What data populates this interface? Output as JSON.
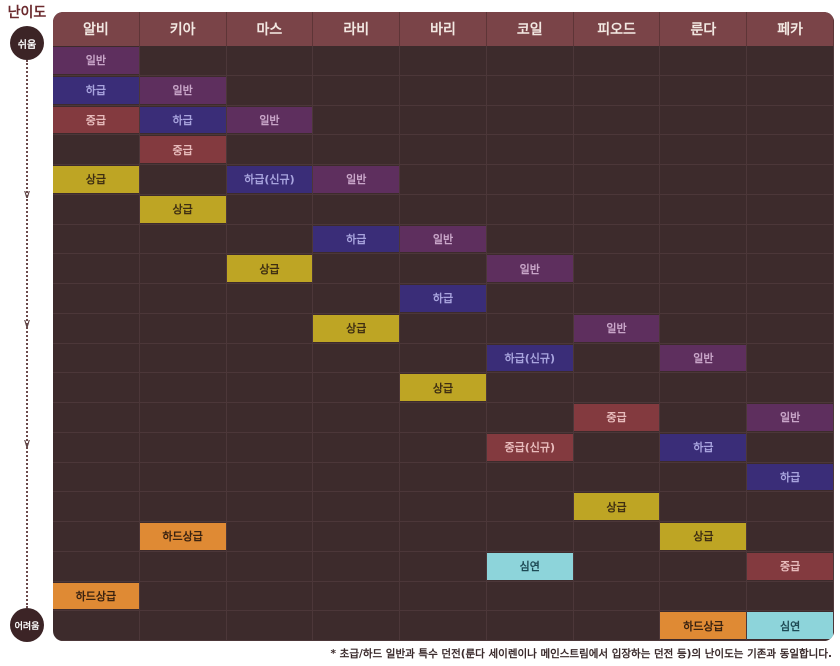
{
  "side": {
    "title": "난이도",
    "easy": "쉬움",
    "hard": "어려움"
  },
  "colors": {
    "일반": {
      "bg": "#5e2f5e",
      "fg": "#c9a6c9"
    },
    "하급": {
      "bg": "#3a2d78",
      "fg": "#a8a4de"
    },
    "하급(신규)": {
      "bg": "#3a2d78",
      "fg": "#a8a4de"
    },
    "중급": {
      "bg": "#833a3f",
      "fg": "#e8bcbc"
    },
    "중급(신규)": {
      "bg": "#833a3f",
      "fg": "#e8bcbc"
    },
    "상급": {
      "bg": "#bea524",
      "fg": "#3e2e12"
    },
    "하드상급": {
      "bg": "#df8a34",
      "fg": "#3a2210"
    },
    "심연": {
      "bg": "#8dd4da",
      "fg": "#1e4a55"
    }
  },
  "columns": [
    "알비",
    "키아",
    "마스",
    "라비",
    "바리",
    "코일",
    "피오드",
    "룬다",
    "페카"
  ],
  "blocks": [
    {
      "col": 0,
      "row": 0,
      "label": "일반"
    },
    {
      "col": 0,
      "row": 1,
      "label": "하급"
    },
    {
      "col": 0,
      "row": 2,
      "label": "중급"
    },
    {
      "col": 0,
      "row": 4,
      "label": "상급"
    },
    {
      "col": 0,
      "row": 18,
      "label": "하드상급"
    },
    {
      "col": 1,
      "row": 1,
      "label": "일반"
    },
    {
      "col": 1,
      "row": 2,
      "label": "하급"
    },
    {
      "col": 1,
      "row": 3,
      "label": "중급"
    },
    {
      "col": 1,
      "row": 5,
      "label": "상급"
    },
    {
      "col": 1,
      "row": 16,
      "label": "하드상급"
    },
    {
      "col": 2,
      "row": 2,
      "label": "일반"
    },
    {
      "col": 2,
      "row": 4,
      "label": "하급(신규)"
    },
    {
      "col": 2,
      "row": 7,
      "label": "상급"
    },
    {
      "col": 3,
      "row": 4,
      "label": "일반"
    },
    {
      "col": 3,
      "row": 6,
      "label": "하급"
    },
    {
      "col": 3,
      "row": 9,
      "label": "상급"
    },
    {
      "col": 4,
      "row": 6,
      "label": "일반"
    },
    {
      "col": 4,
      "row": 8,
      "label": "하급"
    },
    {
      "col": 4,
      "row": 11,
      "label": "상급"
    },
    {
      "col": 5,
      "row": 7,
      "label": "일반"
    },
    {
      "col": 5,
      "row": 10,
      "label": "하급(신규)"
    },
    {
      "col": 5,
      "row": 13,
      "label": "중급(신규)"
    },
    {
      "col": 5,
      "row": 17,
      "label": "심연"
    },
    {
      "col": 6,
      "row": 9,
      "label": "일반"
    },
    {
      "col": 6,
      "row": 12,
      "label": "중급"
    },
    {
      "col": 6,
      "row": 15,
      "label": "상급"
    },
    {
      "col": 7,
      "row": 10,
      "label": "일반"
    },
    {
      "col": 7,
      "row": 13,
      "label": "하급"
    },
    {
      "col": 7,
      "row": 16,
      "label": "상급"
    },
    {
      "col": 7,
      "row": 19,
      "label": "하드상급"
    },
    {
      "col": 8,
      "row": 12,
      "label": "일반"
    },
    {
      "col": 8,
      "row": 14,
      "label": "하급"
    },
    {
      "col": 8,
      "row": 17,
      "label": "중급"
    },
    {
      "col": 8,
      "row": 19,
      "label": "심연"
    }
  ],
  "footnote": "* 초급/하드 일반과 특수 던전(룬다 세이렌이나 메인스트림에서 입장하는 던전 등)의 난이도는 기존과 동일합니다."
}
